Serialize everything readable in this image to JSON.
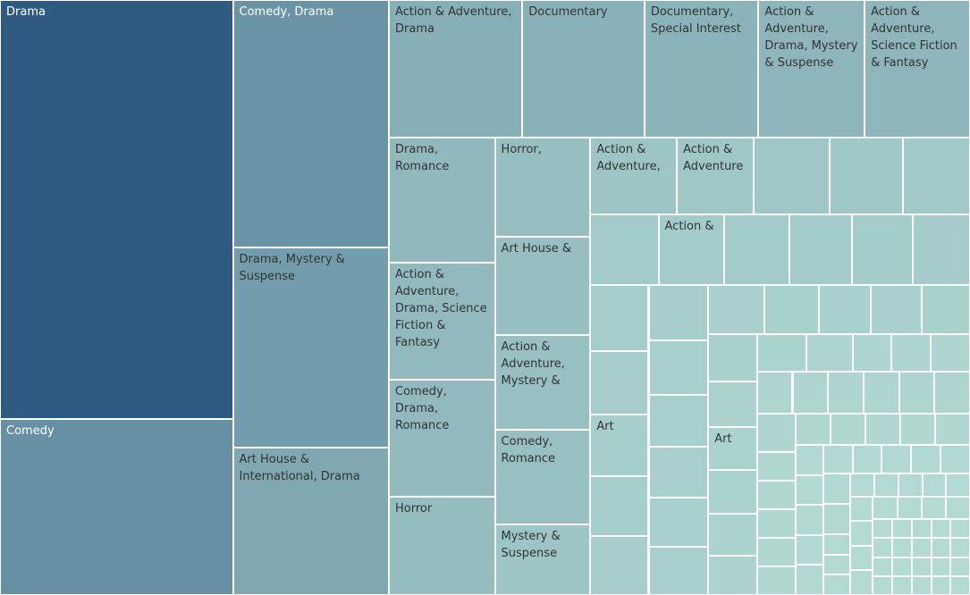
{
  "chart_data": {
    "type": "treemap",
    "categories": [
      "Drama",
      "Comedy",
      "Comedy, Drama",
      "Drama, Mystery & Suspense",
      "Art House & International, Drama",
      "Action & Adventure, Drama",
      "Documentary",
      "Documentary, Special Interest",
      "Action & Adventure, Drama, Mystery & Suspense",
      "Action & Adventure, Science Fiction & Fantasy",
      "Drama, Romance",
      "Action & Adventure, Drama, Science Fiction & Fantasy",
      "Comedy, Drama, Romance",
      "Horror",
      "Horror,",
      "Art House &",
      "Action & Adventure, Mystery &",
      "Comedy, Romance",
      "Mystery & Suspense",
      "Action & Adventure,",
      "Action & Adventure",
      null,
      null,
      null,
      null,
      "Action &",
      null,
      null,
      null,
      null,
      null,
      null,
      "Art",
      null,
      null,
      null,
      null,
      null,
      null,
      null,
      null,
      null,
      null,
      null,
      null,
      null,
      null,
      null,
      "Art",
      null,
      null,
      null,
      null,
      null,
      null,
      null,
      null,
      null,
      null,
      null,
      null,
      null,
      null,
      null,
      null,
      null,
      null,
      null,
      null,
      null,
      null,
      null,
      null,
      null,
      null,
      null,
      null,
      null,
      null,
      null,
      null,
      null,
      null,
      null,
      null,
      null,
      null,
      null,
      null,
      null,
      null,
      null,
      null,
      null,
      null,
      null,
      null,
      null,
      null,
      null,
      null,
      null,
      null,
      null,
      null,
      null,
      null,
      null,
      null,
      null,
      null,
      null,
      null,
      null,
      null,
      null,
      null,
      null,
      null,
      null,
      null,
      null
    ],
    "values": [
      106,
      44.5,
      41.9,
      33.9,
      25,
      20,
      18.3,
      17.1,
      15.9,
      15.8,
      14.3,
      13.5,
      13.5,
      11.3,
      10.2,
      10.2,
      9.9,
      9.8,
      7.3,
      7.2,
      6.4,
      6.3,
      6.1,
      5.6,
      5.2,
      5.0,
      5.0,
      4.8,
      4.6,
      4.4,
      4.2,
      4.0,
      3.9,
      3.8,
      3.7,
      3.6,
      3.5,
      3.4,
      3.3,
      3.2,
      3.1,
      3.0,
      2.9,
      2.8,
      2.7,
      2.6,
      2.5,
      2.4,
      2.3,
      2.3,
      2.2,
      2.1,
      2.0,
      1.9,
      1.6,
      1.6,
      1.6,
      1.6,
      1.6,
      1.6,
      1.6,
      1.6,
      1.6,
      1.6,
      1.2,
      1.2,
      1.2,
      1.2,
      1.2,
      1.2,
      1.2,
      1.2,
      1.2,
      1.2,
      0.9,
      0.9,
      0.9,
      0.9,
      0.9,
      0.9,
      0.9,
      0.9,
      0.9,
      0.9,
      0.9,
      0.9,
      0.6,
      0.6,
      0.6,
      0.6,
      0.6,
      0.6,
      0.6,
      0.6,
      0.6,
      0.6,
      0.6,
      0.6,
      0.6,
      0.6,
      0.6,
      0.6,
      0.4,
      0.4,
      0.4,
      0.4,
      0.4,
      0.4,
      0.4,
      0.4,
      0.4,
      0.4,
      0.4,
      0.4,
      0.4,
      0.4,
      0.4,
      0.4,
      0.4,
      0.4,
      0.4,
      0.4
    ],
    "color_range": [
      "#b9e0d6",
      "#2f5a82"
    ]
  }
}
